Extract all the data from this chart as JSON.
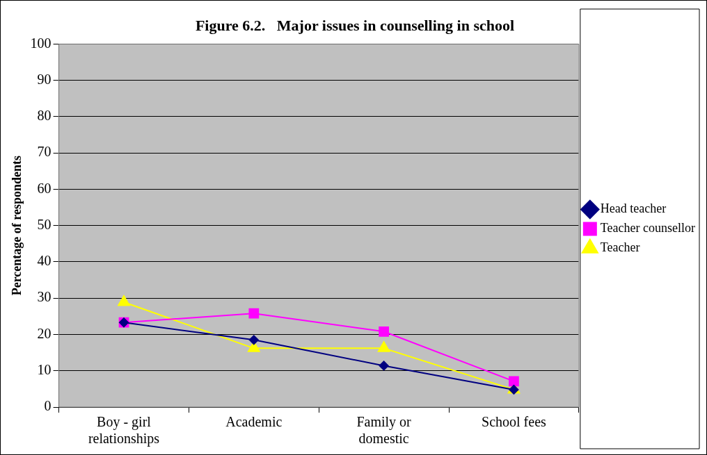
{
  "chart_data": {
    "type": "line",
    "title": "Figure 6.2.   Major issues in counselling in school",
    "ylabel": "Percentage of respondents",
    "categories": [
      "Boy - girl relationships",
      "Academic",
      "Family or domestic",
      "School fees"
    ],
    "series": [
      {
        "name": "Head teacher",
        "color": "#000080",
        "marker": "diamond",
        "values": [
          23.3,
          18.5,
          11.4,
          4.8
        ]
      },
      {
        "name": "Teacher counsellor",
        "color": "#ff00ff",
        "marker": "square",
        "values": [
          23.3,
          25.8,
          20.8,
          7.1
        ]
      },
      {
        "name": "Teacher",
        "color": "#ffff00",
        "marker": "triangle",
        "values": [
          28.9,
          16.2,
          16.2,
          4.8
        ]
      }
    ],
    "ylim": [
      0,
      100
    ],
    "yticks": [
      0,
      10,
      20,
      30,
      40,
      50,
      60,
      70,
      80,
      90,
      100
    ],
    "grid": "y",
    "legend": "right",
    "line_style": "solid"
  }
}
